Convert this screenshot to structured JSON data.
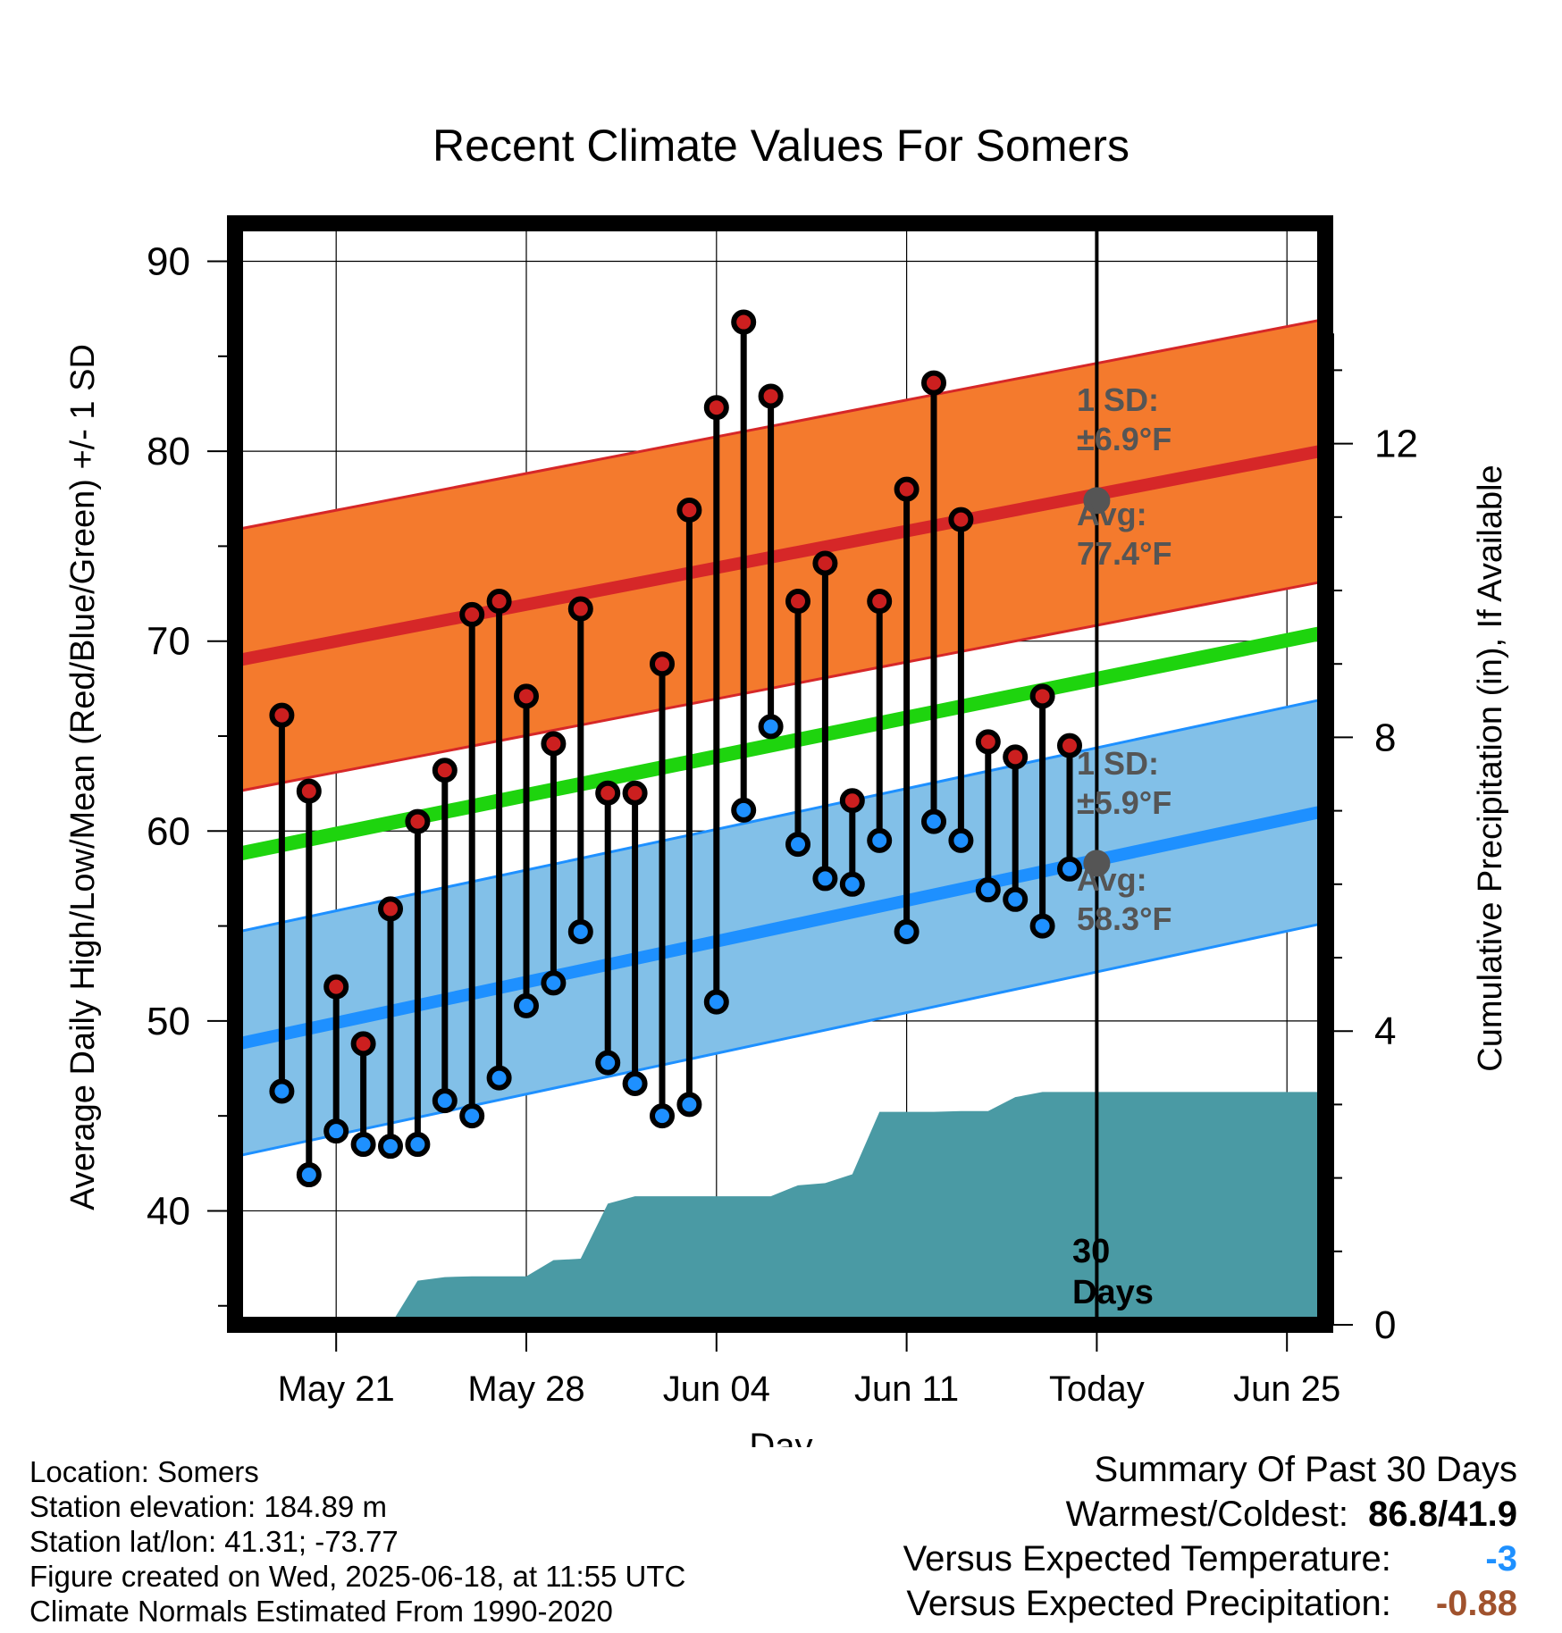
{
  "chart_data": {
    "type": "line",
    "title": "Recent Climate Values For Somers",
    "xlabel": "Day",
    "ylabel": "Average Daily High/Low/Mean (Red/Blue/Green) +/- 1 SD",
    "y2label": "Cumulative Precipitation (in), If Available",
    "xtick_labels": [
      "May 21",
      "May 28",
      "Jun 04",
      "Jun 11",
      "Today",
      "Jun 25"
    ],
    "ylim": [
      34,
      92
    ],
    "yticks": [
      40,
      50,
      60,
      70,
      80,
      90
    ],
    "y2lim": [
      0,
      15
    ],
    "y2ticks": [
      0,
      4,
      8,
      12
    ],
    "grid": true,
    "series": [
      {
        "name": "High",
        "color": "#cc1f1f",
        "values": [
          66.1,
          62.1,
          51.8,
          48.8,
          55.9,
          60.5,
          63.2,
          71.4,
          72.1,
          67.1,
          64.6,
          71.7,
          62.0,
          62.0,
          68.8,
          76.9,
          82.3,
          86.8,
          82.9,
          72.1,
          74.1,
          61.6,
          72.1,
          78.0,
          83.6,
          76.4,
          64.7,
          63.9,
          67.1,
          64.5
        ]
      },
      {
        "name": "Low",
        "color": "#1e90ff",
        "values": [
          46.3,
          41.9,
          44.2,
          43.5,
          43.4,
          43.5,
          45.8,
          45.0,
          47.0,
          50.8,
          52.0,
          54.7,
          47.8,
          46.7,
          45.0,
          45.6,
          51.0,
          61.1,
          65.5,
          59.3,
          57.5,
          57.2,
          59.5,
          54.7,
          60.5,
          59.5,
          56.9,
          56.4,
          55.0,
          58.0
        ]
      }
    ],
    "normals": {
      "avg_high_start": 69.0,
      "avg_high_end": 80.0,
      "avg_low_start": 48.8,
      "avg_low_end": 61.0,
      "avg_mean_start": 58.8,
      "avg_mean_end": 70.4,
      "high_sd": 6.9,
      "low_sd": 5.9
    },
    "precipitation": {
      "color": "#4a9aa4",
      "values": [
        0,
        0,
        0,
        0,
        0,
        0,
        0.6,
        0.65,
        0.66,
        0.66,
        0.66,
        0.88,
        0.9,
        1.65,
        1.75,
        1.75,
        1.75,
        1.75,
        1.75,
        1.75,
        1.9,
        1.93,
        2.05,
        2.9,
        2.9,
        2.9,
        2.91,
        2.91,
        3.1,
        3.17,
        3.17,
        3.17,
        3.17,
        3.17,
        3.17,
        3.17,
        3.17,
        3.17,
        3.17,
        3.17,
        3.17,
        3.17
      ]
    },
    "annotations": {
      "high_sd": "1 SD: ±6.9°F",
      "high_avg": "Avg: 77.4°F",
      "low_sd": "1 SD: ±5.9°F",
      "low_avg": "Avg: 58.3°F",
      "days": "30 Days",
      "today_high_avg": 77.4,
      "today_low_avg": 58.3
    }
  },
  "meta": {
    "location": "Location: Somers",
    "elevation": "Station elevation: 184.89 m",
    "latlon": "Station lat/lon: 41.31; -73.77",
    "created": "Figure created on Wed, 2025-06-18, at 11:55 UTC",
    "normals": "Climate Normals Estimated From 1990-2020"
  },
  "summary": {
    "title": "Summary Of Past 30 Days",
    "warm_cold_label": "Warmest/Coldest:",
    "warm_cold_value": "86.8/41.9",
    "temp_label": "Versus Expected Temperature:",
    "temp_value": "-3",
    "temp_color": "#1e90ff",
    "precip_label": "Versus Expected Precipitation:",
    "precip_value": "-0.88",
    "precip_color": "#a0522d"
  }
}
